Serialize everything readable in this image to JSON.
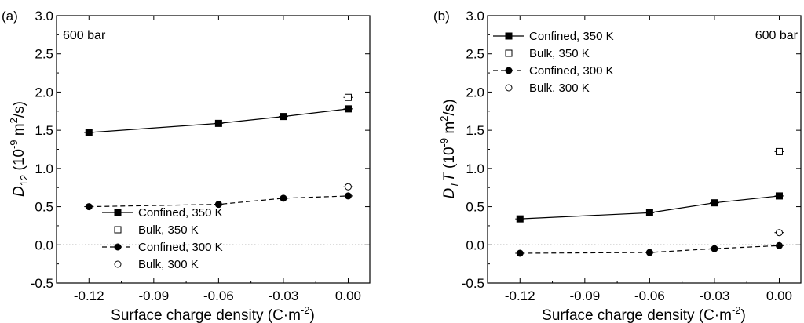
{
  "chart_data": [
    {
      "type": "line",
      "panel_label": "(a)",
      "annotation": "600 bar",
      "xlabel": "Surface charge density (C·m",
      "xlabel_sup": "-2",
      "xlabel_end": ")",
      "ylabel_main": "D",
      "ylabel_sub": "12",
      "ylabel_rest": " (10",
      "ylabel_sup1": "-9",
      "ylabel_mid": " m",
      "ylabel_sup2": "2",
      "ylabel_end": "/s)",
      "xlim": [
        -0.135,
        0.01
      ],
      "ylim": [
        -0.5,
        3.0
      ],
      "xticks": [
        -0.12,
        -0.09,
        -0.06,
        -0.03,
        0.0
      ],
      "xtick_labels": [
        "-0.12",
        "-0.09",
        "-0.06",
        "-0.03",
        "0.00"
      ],
      "yticks": [
        -0.5,
        0.0,
        0.5,
        1.0,
        1.5,
        2.0,
        2.5,
        3.0
      ],
      "ytick_labels": [
        "-0.5",
        "0.0",
        "0.5",
        "1.0",
        "1.5",
        "2.0",
        "2.5",
        "3.0"
      ],
      "zero_line": true,
      "legend_position": "bottom-left",
      "series": [
        {
          "name": "Confined, 350 K",
          "marker": "square-filled",
          "line": "solid",
          "x": [
            -0.12,
            -0.06,
            -0.03,
            0.0
          ],
          "y": [
            1.47,
            1.59,
            1.68,
            1.78
          ]
        },
        {
          "name": "Bulk, 350 K",
          "marker": "square-open",
          "line": "none",
          "x": [
            0.0
          ],
          "y": [
            1.93
          ]
        },
        {
          "name": "Confined, 300 K",
          "marker": "circle-filled",
          "line": "dashed",
          "x": [
            -0.12,
            -0.06,
            -0.03,
            0.0
          ],
          "y": [
            0.5,
            0.53,
            0.61,
            0.64
          ]
        },
        {
          "name": "Bulk, 300 K",
          "marker": "circle-open",
          "line": "none",
          "x": [
            0.0
          ],
          "y": [
            0.76
          ]
        }
      ]
    },
    {
      "type": "line",
      "panel_label": "(b)",
      "annotation": "600 bar",
      "xlabel": "Surface charge density (C·m",
      "xlabel_sup": "-2",
      "xlabel_end": ")",
      "ylabel_main": "D",
      "ylabel_sub": "T",
      "ylabel_t": "T",
      "ylabel_rest": " (10",
      "ylabel_sup1": "-9",
      "ylabel_mid": " m",
      "ylabel_sup2": "2",
      "ylabel_end": "/s)",
      "xlim": [
        -0.135,
        0.01
      ],
      "ylim": [
        -0.5,
        3.0
      ],
      "xticks": [
        -0.12,
        -0.09,
        -0.06,
        -0.03,
        0.0
      ],
      "xtick_labels": [
        "-0.12",
        "-0.09",
        "-0.06",
        "-0.03",
        "0.00"
      ],
      "yticks": [
        -0.5,
        0.0,
        0.5,
        1.0,
        1.5,
        2.0,
        2.5,
        3.0
      ],
      "ytick_labels": [
        "-0.5",
        "0.0",
        "0.5",
        "1.0",
        "1.5",
        "2.0",
        "2.5",
        "3.0"
      ],
      "zero_line": true,
      "legend_position": "top-left",
      "series": [
        {
          "name": "Confined, 350 K",
          "marker": "square-filled",
          "line": "solid",
          "x": [
            -0.12,
            -0.06,
            -0.03,
            0.0
          ],
          "y": [
            0.34,
            0.42,
            0.55,
            0.64
          ]
        },
        {
          "name": "Bulk, 350 K",
          "marker": "square-open",
          "line": "none",
          "x": [
            0.0
          ],
          "y": [
            1.22
          ]
        },
        {
          "name": "Confined, 300 K",
          "marker": "circle-filled",
          "line": "dashed",
          "x": [
            -0.12,
            -0.06,
            -0.03,
            0.0
          ],
          "y": [
            -0.11,
            -0.1,
            -0.05,
            -0.01
          ]
        },
        {
          "name": "Bulk, 300 K",
          "marker": "circle-open",
          "line": "none",
          "x": [
            0.0
          ],
          "y": [
            0.16
          ]
        }
      ]
    }
  ]
}
